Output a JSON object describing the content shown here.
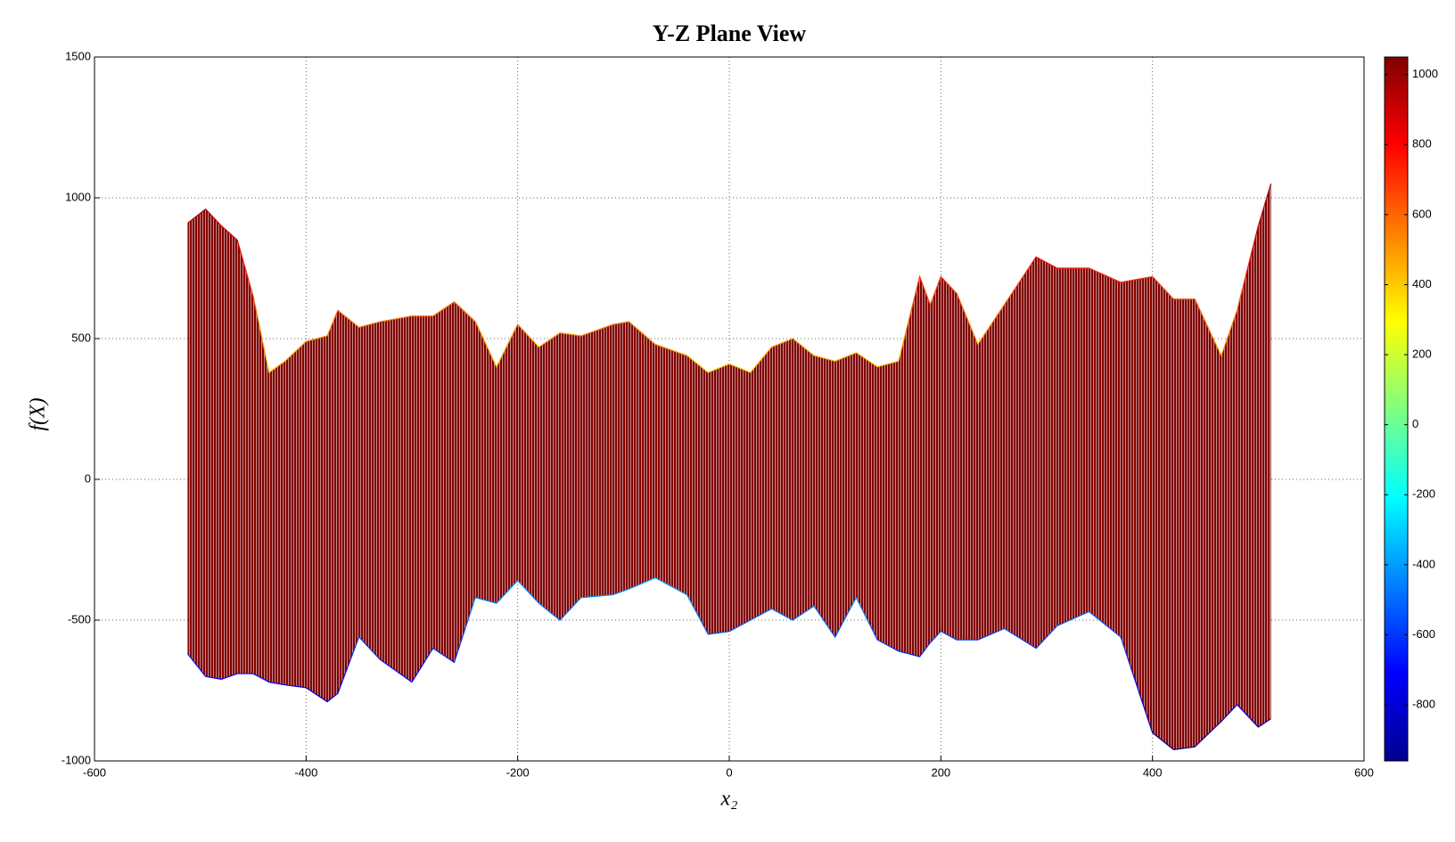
{
  "chart_data": {
    "type": "band",
    "title": "Y-Z Plane View",
    "xlabel": "x₂",
    "ylabel": "f(X)",
    "x": [
      -512,
      -495,
      -480,
      -465,
      -450,
      -435,
      -420,
      -400,
      -380,
      -370,
      -350,
      -330,
      -300,
      -280,
      -260,
      -240,
      -220,
      -200,
      -180,
      -160,
      -140,
      -110,
      -95,
      -70,
      -40,
      -20,
      0,
      20,
      40,
      60,
      80,
      100,
      120,
      140,
      160,
      180,
      190,
      200,
      215,
      235,
      260,
      290,
      310,
      340,
      370,
      400,
      420,
      440,
      465,
      480,
      500,
      512
    ],
    "series": [
      {
        "values": [
          910,
          960,
          900,
          850,
          650,
          380,
          420,
          490,
          510,
          600,
          540,
          560,
          580,
          580,
          630,
          560,
          400,
          550,
          470,
          520,
          510,
          550,
          560,
          480,
          440,
          380,
          410,
          380,
          470,
          500,
          440,
          420,
          450,
          400,
          420,
          720,
          620,
          720,
          660,
          480,
          620,
          790,
          750,
          750,
          700,
          720,
          640,
          640,
          440,
          600,
          900,
          1050
        ]
      },
      {
        "values": [
          -620,
          -700,
          -710,
          -690,
          -690,
          -720,
          -730,
          -740,
          -790,
          -760,
          -560,
          -640,
          -720,
          -600,
          -650,
          -420,
          -440,
          -360,
          -440,
          -500,
          -420,
          -410,
          -390,
          -350,
          -410,
          -550,
          -540,
          -500,
          -460,
          -500,
          -450,
          -560,
          -420,
          -570,
          -610,
          -630,
          -580,
          -540,
          -570,
          -570,
          -530,
          -600,
          -520,
          -470,
          -560,
          -900,
          -960,
          -950,
          -860,
          -800,
          -880,
          -850
        ]
      }
    ],
    "xlim": [
      -600,
      600
    ],
    "xticks": [
      -600,
      -400,
      -200,
      0,
      200,
      400,
      600
    ],
    "ylim": [
      -1000,
      1500
    ],
    "yticks": [
      -1000,
      -500,
      0,
      500,
      1000,
      1500
    ],
    "grid": true,
    "colormap": "jet",
    "clim": [
      -960,
      1050
    ],
    "cticks": [
      -800,
      -600,
      -400,
      -200,
      0,
      200,
      400,
      600,
      800,
      1000
    ]
  }
}
